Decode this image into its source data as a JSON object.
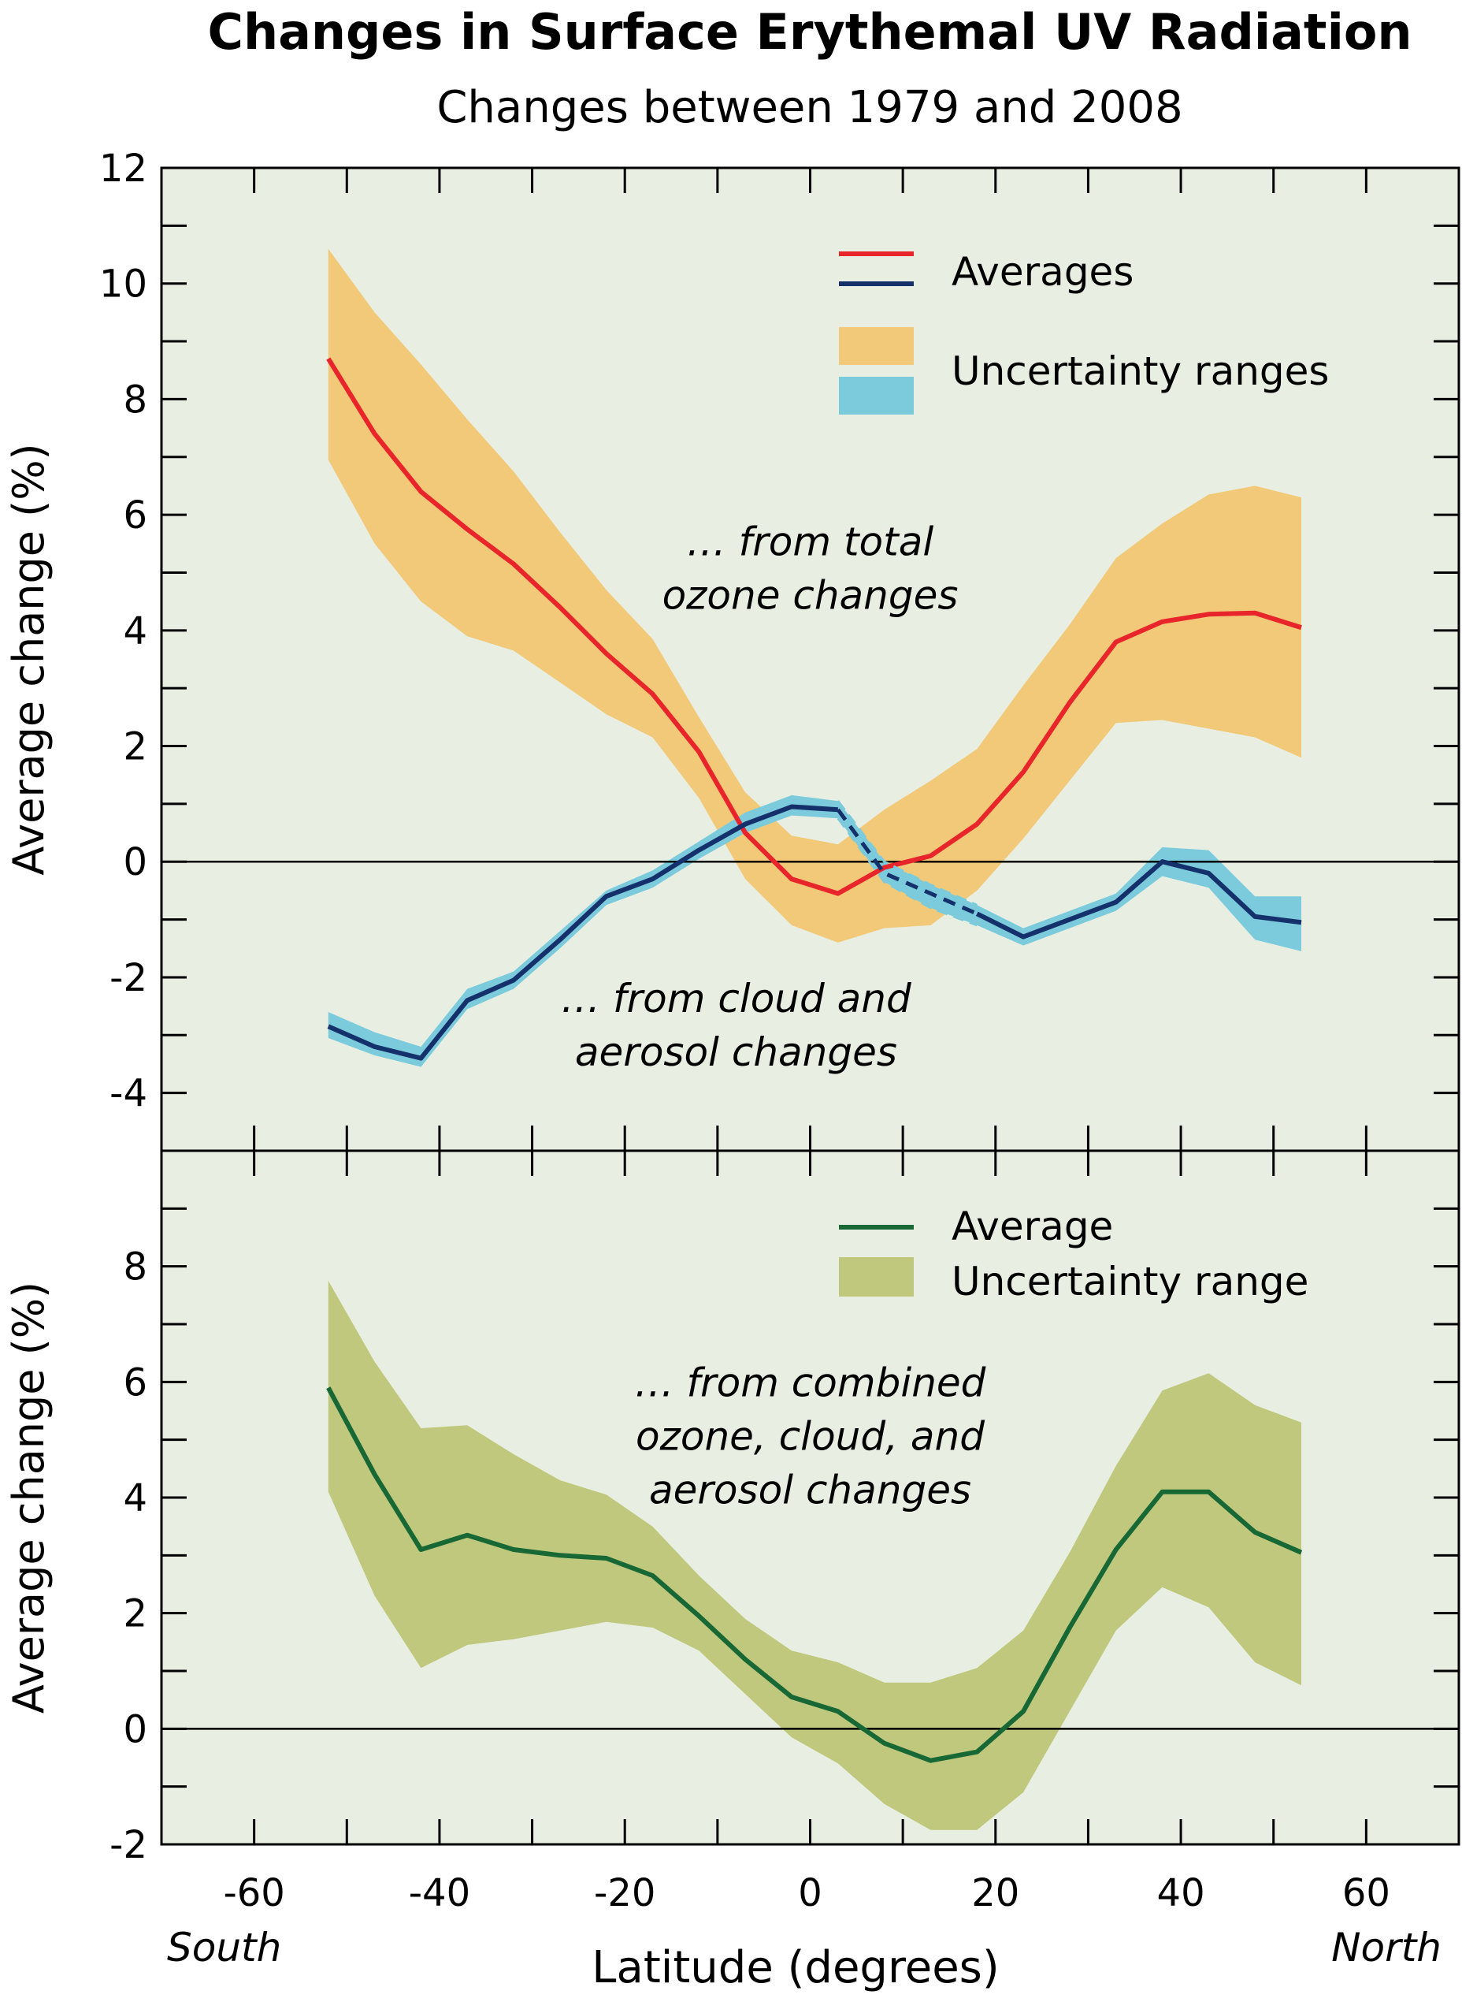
{
  "chart_data": {
    "type": "line",
    "title": "Changes in Surface Erythemal UV Radiation",
    "subtitle": "Changes between 1979 and 2008",
    "xlabel": "Latitude (degrees)",
    "x_direction_labels": {
      "left": "South",
      "right": "North"
    },
    "xlim": [
      -70,
      70
    ],
    "x_ticks": [
      -60,
      -40,
      -20,
      0,
      20,
      40,
      60
    ],
    "colors": {
      "background": "#e8efe2",
      "ozone_avg": "#e8252a",
      "ozone_band": "#f1c978",
      "cloud_avg": "#15316b",
      "cloud_band": "#7ccbdc",
      "combined_avg": "#176835",
      "combined_band": "#bfc87c"
    },
    "panels": [
      {
        "ylabel": "Average change (%)",
        "ylim": [
          -5,
          12
        ],
        "y_ticks": [
          -4,
          -2,
          0,
          2,
          4,
          6,
          8,
          10,
          12
        ],
        "legend": [
          {
            "label": "Averages",
            "kind": "lines"
          },
          {
            "label": "Uncertainty ranges",
            "kind": "bands"
          }
        ],
        "annotations": [
          {
            "lines": [
              "… from total",
              "ozone changes"
            ],
            "anchor": [
              0,
              5.3
            ]
          },
          {
            "lines": [
              "… from cloud and",
              "aerosol changes"
            ],
            "anchor": [
              -8,
              -2.6
            ]
          }
        ],
        "series": [
          {
            "name": "… from total ozone changes",
            "x": [
              -52,
              -47,
              -42,
              -37,
              -32,
              -27,
              -22,
              -17,
              -12,
              -7,
              -2,
              3,
              8,
              13,
              18,
              23,
              28,
              33,
              38,
              43,
              48,
              53
            ],
            "values": [
              8.7,
              7.4,
              6.4,
              5.75,
              5.15,
              4.4,
              3.6,
              2.9,
              1.9,
              0.5,
              -0.3,
              -0.55,
              -0.1,
              0.1,
              0.65,
              1.55,
              2.75,
              3.8,
              4.15,
              4.28,
              4.3,
              4.05
            ],
            "lower": [
              6.95,
              5.5,
              4.5,
              3.9,
              3.65,
              3.1,
              2.55,
              2.15,
              1.1,
              -0.3,
              -1.1,
              -1.4,
              -1.15,
              -1.1,
              -0.5,
              0.4,
              1.4,
              2.4,
              2.45,
              2.3,
              2.15,
              1.8
            ],
            "upper": [
              10.6,
              9.5,
              8.6,
              7.65,
              6.75,
              5.7,
              4.7,
              3.85,
              2.5,
              1.2,
              0.45,
              0.3,
              0.9,
              1.4,
              1.95,
              3.05,
              4.1,
              5.25,
              5.85,
              6.35,
              6.5,
              6.3
            ]
          },
          {
            "name": "… from cloud and aerosol changes",
            "x": [
              -52,
              -47,
              -42,
              -37,
              -32,
              -27,
              -22,
              -17,
              -12,
              -7,
              -2,
              3,
              8,
              13,
              18,
              23,
              28,
              33,
              38,
              43,
              48,
              53
            ],
            "values": [
              -2.85,
              -3.2,
              -3.4,
              -2.4,
              -2.05,
              -1.35,
              -0.6,
              -0.3,
              0.2,
              0.65,
              0.95,
              0.9,
              -0.2,
              -0.55,
              -0.9,
              -1.3,
              -1.0,
              -0.7,
              0.0,
              -0.2,
              -0.95,
              -1.05
            ],
            "lower": [
              -3.05,
              -3.35,
              -3.55,
              -2.55,
              -2.2,
              -1.5,
              -0.75,
              -0.45,
              0.05,
              0.5,
              0.8,
              0.75,
              -0.35,
              -0.8,
              -1.1,
              -1.45,
              -1.15,
              -0.85,
              -0.25,
              -0.45,
              -1.35,
              -1.55
            ],
            "upper": [
              -2.6,
              -2.95,
              -3.2,
              -2.2,
              -1.9,
              -1.2,
              -0.5,
              -0.15,
              0.35,
              0.85,
              1.15,
              1.05,
              0.0,
              -0.4,
              -0.75,
              -1.15,
              -0.85,
              -0.55,
              0.25,
              0.2,
              -0.6,
              -0.6
            ],
            "dashed_x_range": [
              3,
              18
            ]
          }
        ]
      },
      {
        "ylabel": "Average change (%)",
        "ylim": [
          -2,
          10
        ],
        "y_ticks": [
          -2,
          0,
          2,
          4,
          6,
          8
        ],
        "legend": [
          {
            "label": "Average",
            "kind": "line"
          },
          {
            "label": "Uncertainty range",
            "kind": "band"
          }
        ],
        "annotations": [
          {
            "lines": [
              "… from combined",
              "ozone, cloud, and",
              "aerosol changes"
            ],
            "anchor": [
              0,
              5.75
            ]
          }
        ],
        "series": [
          {
            "name": "… from combined ozone, cloud, and aerosol changes",
            "x": [
              -52,
              -47,
              -42,
              -37,
              -32,
              -27,
              -22,
              -17,
              -12,
              -7,
              -2,
              3,
              8,
              13,
              18,
              23,
              28,
              33,
              38,
              43,
              48,
              53
            ],
            "values": [
              5.9,
              4.4,
              3.1,
              3.35,
              3.1,
              3.0,
              2.95,
              2.65,
              1.95,
              1.2,
              0.55,
              0.3,
              -0.25,
              -0.55,
              -0.4,
              0.3,
              1.75,
              3.1,
              4.1,
              4.1,
              3.4,
              3.05
            ],
            "lower": [
              4.1,
              2.3,
              1.05,
              1.45,
              1.55,
              1.7,
              1.85,
              1.75,
              1.35,
              0.6,
              -0.15,
              -0.6,
              -1.3,
              -1.75,
              -1.75,
              -1.1,
              0.3,
              1.7,
              2.45,
              2.1,
              1.15,
              0.75
            ],
            "upper": [
              7.75,
              6.35,
              5.2,
              5.25,
              4.75,
              4.3,
              4.05,
              3.5,
              2.65,
              1.9,
              1.35,
              1.15,
              0.8,
              0.8,
              1.05,
              1.7,
              3.05,
              4.55,
              5.85,
              6.15,
              5.6,
              5.3
            ]
          }
        ]
      }
    ]
  }
}
